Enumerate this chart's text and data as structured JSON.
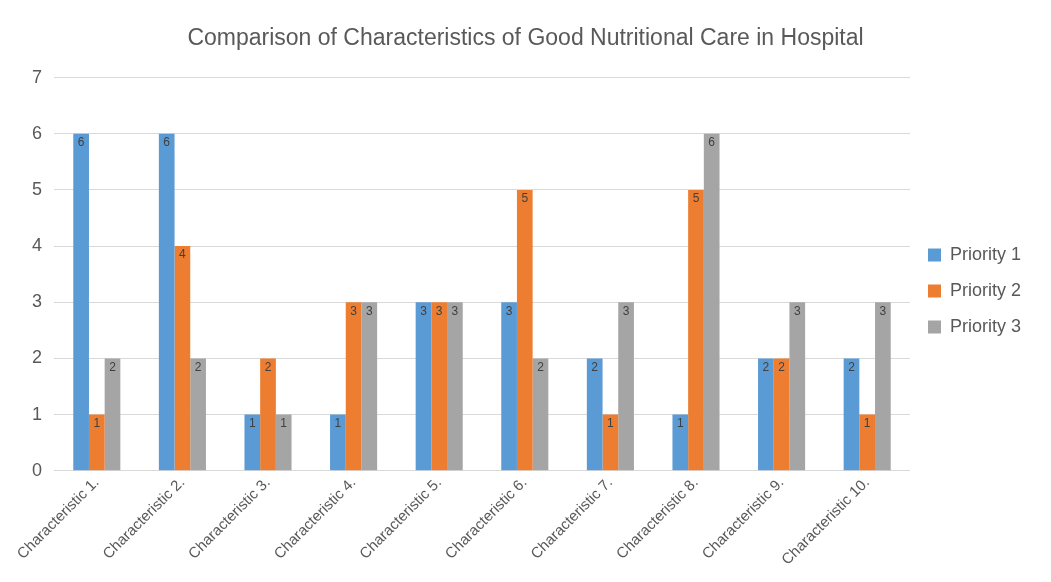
{
  "chart_data": {
    "type": "bar",
    "title": "Comparison of Characteristics of Good Nutritional Care in Hospital",
    "categories": [
      "Characteristic 1.",
      "Characteristic 2.",
      "Characteristic 3.",
      "Characteristic 4.",
      "Characteristic 5.",
      "Characteristic 6.",
      "Characteristic 7.",
      "Characteristic 8.",
      "Characteristic 9.",
      "Characteristic 10."
    ],
    "series": [
      {
        "name": "Priority 1",
        "color": "#5b9bd5",
        "values": [
          6,
          6,
          1,
          1,
          3,
          3,
          2,
          1,
          2,
          2
        ]
      },
      {
        "name": "Priority 2",
        "color": "#ed7d31",
        "values": [
          1,
          4,
          2,
          3,
          3,
          5,
          1,
          5,
          2,
          1
        ]
      },
      {
        "name": "Priority 3",
        "color": "#a5a5a5",
        "values": [
          2,
          2,
          1,
          3,
          3,
          2,
          3,
          6,
          3,
          3
        ]
      }
    ],
    "ylim": [
      0,
      7
    ],
    "yticks": [
      0,
      1,
      2,
      3,
      4,
      5,
      6,
      7
    ],
    "grid": "y",
    "legend": "right",
    "data_labels": true
  }
}
